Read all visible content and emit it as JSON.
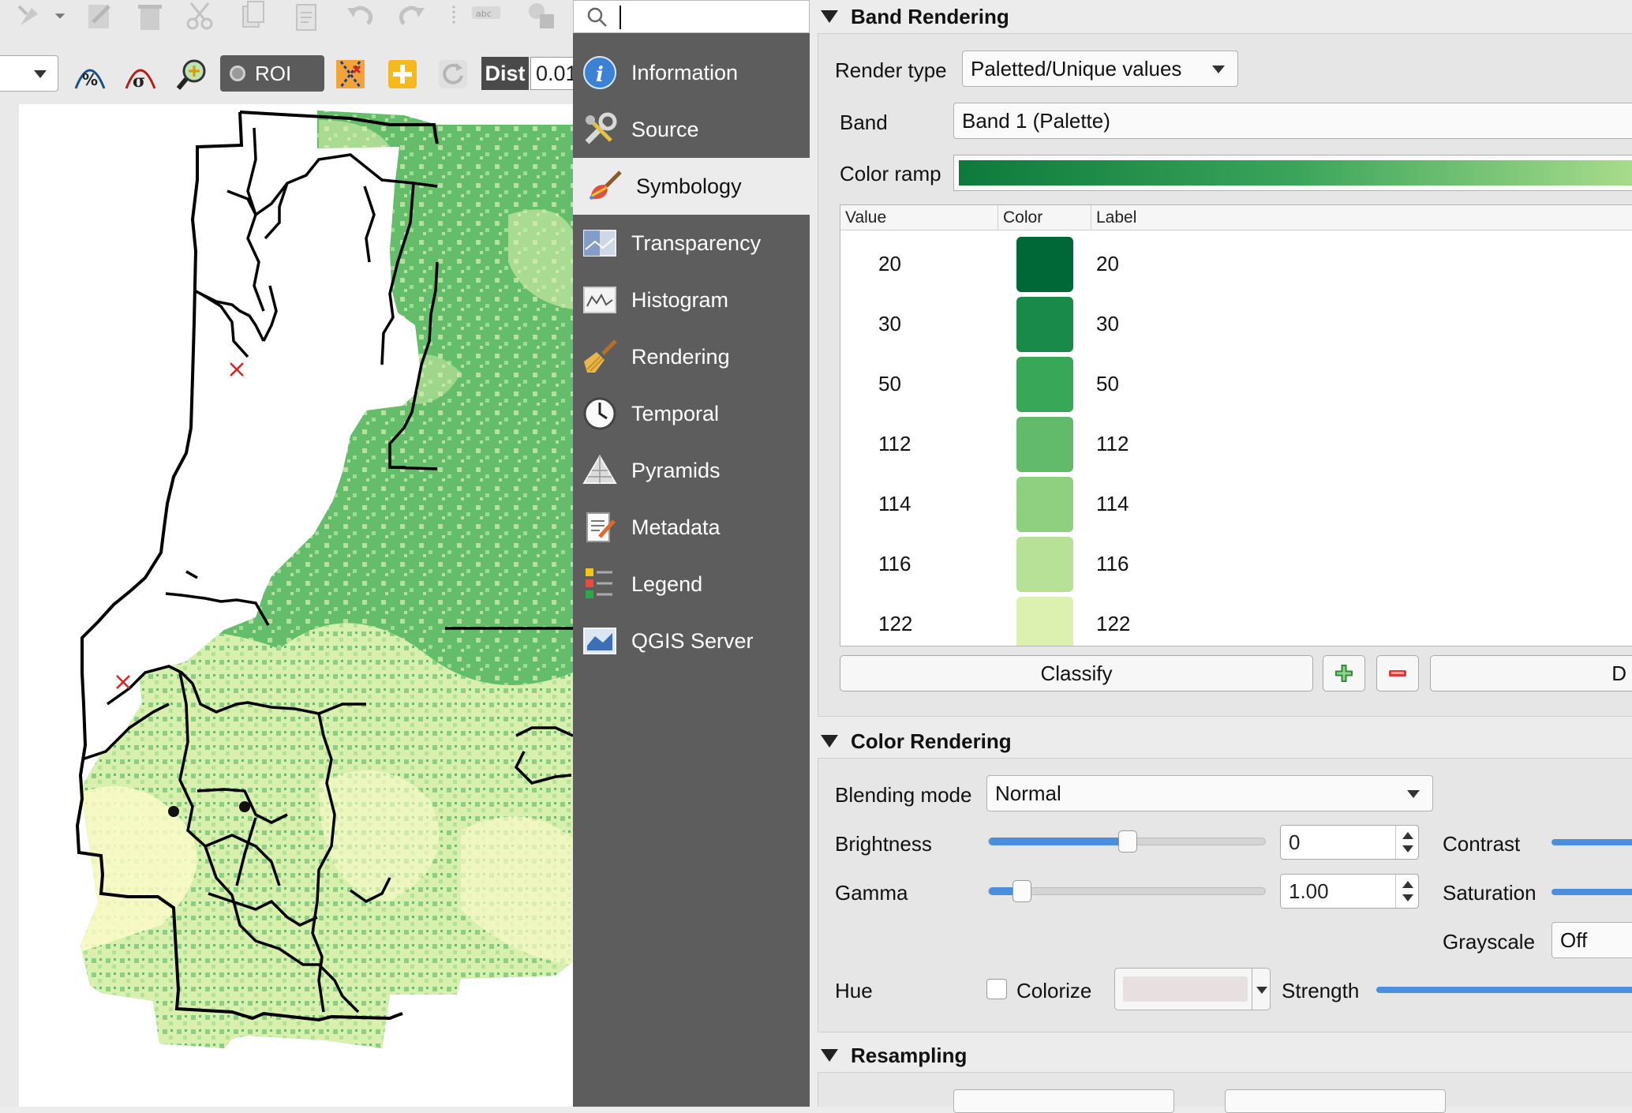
{
  "toolbar": {
    "roi_label": "ROI",
    "dist_label": "Dist",
    "dist_value": "0.01"
  },
  "search": {
    "value": ""
  },
  "sidebar": {
    "items": [
      {
        "label": "Information",
        "icon": "info-icon"
      },
      {
        "label": "Source",
        "icon": "wrench-icon"
      },
      {
        "label": "Symbology",
        "icon": "paintbrush-icon",
        "active": true
      },
      {
        "label": "Transparency",
        "icon": "transparency-icon"
      },
      {
        "label": "Histogram",
        "icon": "histogram-icon"
      },
      {
        "label": "Rendering",
        "icon": "broom-icon"
      },
      {
        "label": "Temporal",
        "icon": "clock-icon"
      },
      {
        "label": "Pyramids",
        "icon": "pyramid-icon"
      },
      {
        "label": "Metadata",
        "icon": "document-pencil-icon"
      },
      {
        "label": "Legend",
        "icon": "legend-icon"
      },
      {
        "label": "QGIS Server",
        "icon": "server-map-icon"
      }
    ]
  },
  "band_rendering": {
    "title": "Band Rendering",
    "render_type_label": "Render type",
    "render_type_value": "Paletted/Unique values",
    "band_label": "Band",
    "band_value": "Band 1 (Palette)",
    "color_ramp_label": "Color ramp",
    "ramp_colors": [
      "#0d7a3c",
      "#3aa55a",
      "#a8dc8c"
    ],
    "table": {
      "headers": [
        "Value",
        "Color",
        "Label"
      ],
      "rows": [
        {
          "value": "20",
          "color": "#006837",
          "label": "20"
        },
        {
          "value": "30",
          "color": "#1a8a4a",
          "label": "30"
        },
        {
          "value": "50",
          "color": "#38a858",
          "label": "50"
        },
        {
          "value": "112",
          "color": "#62bb6a",
          "label": "112"
        },
        {
          "value": "114",
          "color": "#8ed080",
          "label": "114"
        },
        {
          "value": "116",
          "color": "#b6e196",
          "label": "116"
        },
        {
          "value": "122",
          "color": "#dcf0b0",
          "label": "122"
        }
      ]
    },
    "classify_label": "Classify",
    "next_button_label": "D"
  },
  "color_rendering": {
    "title": "Color Rendering",
    "blending_mode_label": "Blending mode",
    "blending_mode_value": "Normal",
    "brightness_label": "Brightness",
    "brightness_value": "0",
    "contrast_label": "Contrast",
    "gamma_label": "Gamma",
    "gamma_value": "1.00",
    "saturation_label": "Saturation",
    "grayscale_label": "Grayscale",
    "grayscale_value": "Off",
    "hue_label": "Hue",
    "colorize_label": "Colorize",
    "colorize_checked": false,
    "strength_label": "Strength"
  },
  "resampling": {
    "title": "Resampling"
  }
}
